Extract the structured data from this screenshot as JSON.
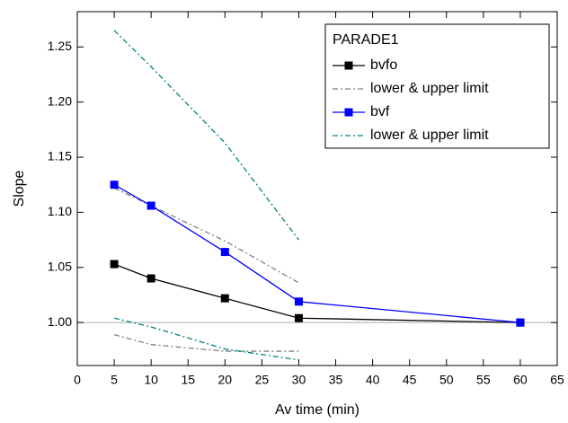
{
  "chart_data": {
    "type": "line",
    "x_label": "Av time (min)",
    "y_label": "Slope",
    "x": [
      5,
      10,
      20,
      30,
      60
    ],
    "xlim": [
      0,
      65
    ],
    "xticks": [
      0,
      5,
      10,
      15,
      20,
      25,
      30,
      35,
      40,
      45,
      50,
      55,
      60,
      65
    ],
    "ylim": [
      0.961,
      1.282
    ],
    "yticks": [
      {
        "value": 1.0,
        "label": "1.00"
      },
      {
        "value": 1.05,
        "label": "1.05"
      },
      {
        "value": 1.1,
        "label": "1.10"
      },
      {
        "value": 1.15,
        "label": "1.15"
      },
      {
        "value": 1.2,
        "label": "1.20"
      },
      {
        "value": 1.25,
        "label": "1.25"
      }
    ],
    "reference_line": 1.0,
    "legend_title": "PARADE1",
    "legend_position": "top-right",
    "series": [
      {
        "name": "bvfo",
        "color": "#000000",
        "style": "solid-square",
        "values": [
          1.053,
          1.04,
          1.022,
          1.004,
          1.0
        ]
      },
      {
        "name": "lower & upper limit",
        "color": "#808080",
        "style": "dashdot",
        "values": [
          1.122,
          1.106,
          1.074,
          1.036,
          null
        ],
        "lower_values": [
          0.989,
          0.98,
          0.974,
          0.974,
          null
        ]
      },
      {
        "name": "bvf",
        "color": "#0000ff",
        "style": "solid-square",
        "values": [
          1.125,
          1.106,
          1.064,
          1.019,
          1.0
        ]
      },
      {
        "name": "lower & upper limit",
        "color": "#008080",
        "style": "dashdot",
        "values": [
          1.265,
          1.232,
          1.163,
          1.075,
          null
        ],
        "lower_values": [
          1.004,
          0.996,
          0.976,
          0.966,
          null
        ]
      }
    ]
  }
}
